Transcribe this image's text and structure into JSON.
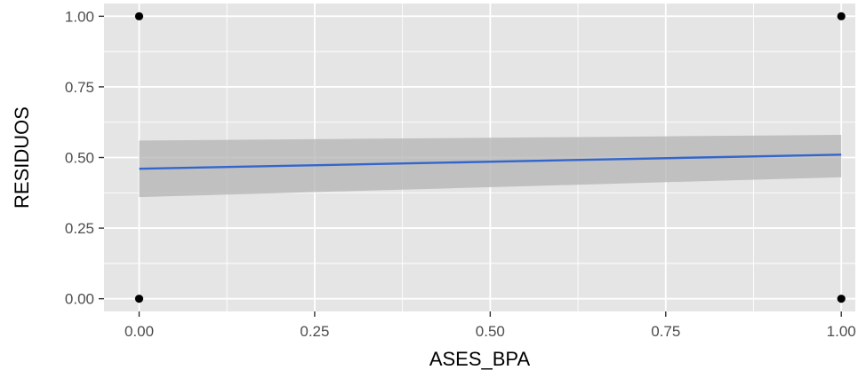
{
  "chart_data": {
    "type": "scatter",
    "xlabel": "ASES_BPA",
    "ylabel": "RESIDUOS",
    "xlim": [
      -0.05,
      1.02
    ],
    "ylim": [
      -0.045,
      1.045
    ],
    "x_ticks": [
      0.0,
      0.25,
      0.5,
      0.75,
      1.0
    ],
    "x_tick_labels": [
      "0.00",
      "0.25",
      "0.50",
      "0.75",
      "1.00"
    ],
    "y_ticks": [
      0.0,
      0.25,
      0.5,
      0.75,
      1.0
    ],
    "y_tick_labels": [
      "0.00",
      "0.25",
      "0.50",
      "0.75",
      "1.00"
    ],
    "grid": true,
    "points": [
      {
        "x": 0.0,
        "y": 1.0
      },
      {
        "x": 1.0,
        "y": 1.0
      },
      {
        "x": 0.0,
        "y": 0.0
      },
      {
        "x": 1.0,
        "y": 0.0
      }
    ],
    "smooth": {
      "method": "lm",
      "x": [
        0.0,
        1.0
      ],
      "y": [
        0.46,
        0.51
      ],
      "ci_lower": [
        0.36,
        0.43
      ],
      "ci_upper": [
        0.56,
        0.58
      ]
    },
    "colors": {
      "panel": "#e5e5e5",
      "grid": "#ffffff",
      "line": "#3366cc",
      "ribbon": "#b3b3b3",
      "point": "#000000",
      "tick_text": "#4d4d4d"
    }
  }
}
